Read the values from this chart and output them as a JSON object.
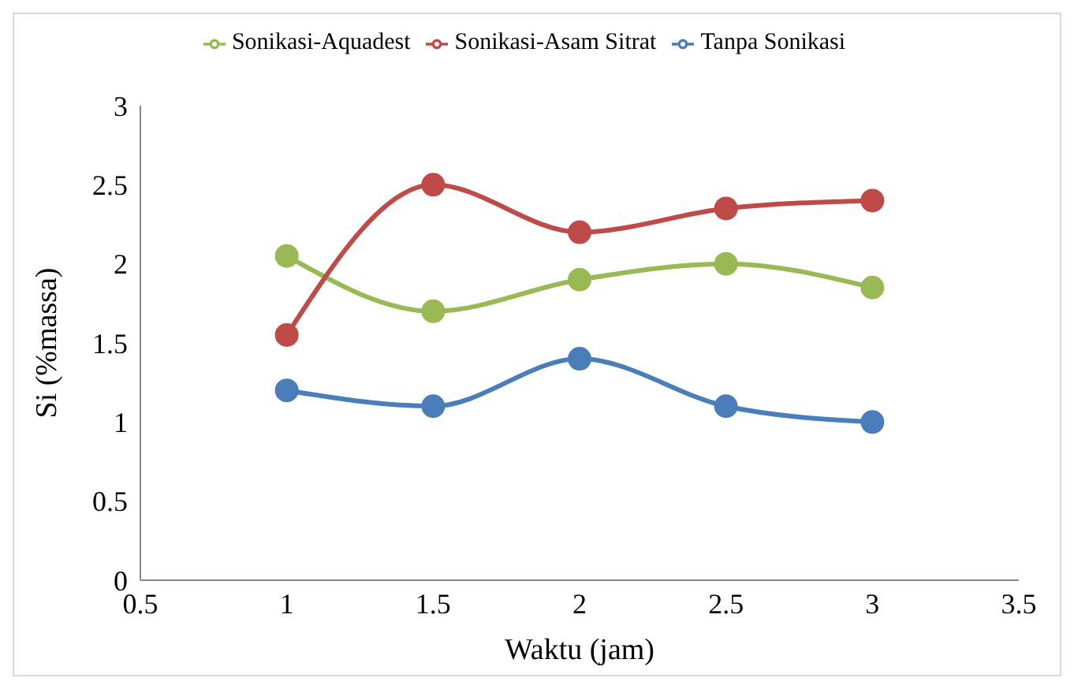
{
  "chart_data": {
    "type": "line",
    "xlabel": "Waktu (jam)",
    "ylabel": "Si (%massa)",
    "x": [
      1,
      1.5,
      2,
      2.5,
      3
    ],
    "series": [
      {
        "name": "Tanpa Sonikasi",
        "color": "#4a7ebb",
        "values": [
          1.2,
          1.1,
          1.4,
          1.1,
          1.0
        ]
      },
      {
        "name": "Sonikasi-Aquadest",
        "color": "#98b954",
        "values": [
          2.05,
          1.7,
          1.9,
          2.0,
          1.85
        ]
      },
      {
        "name": "Sonikasi-Asam Sitrat",
        "color": "#be4b48",
        "values": [
          1.55,
          2.5,
          2.2,
          2.35,
          2.4
        ]
      }
    ],
    "xlim": [
      0.5,
      3.5
    ],
    "xticks": [
      0.5,
      1,
      1.5,
      2,
      2.5,
      3,
      3.5
    ],
    "ylim": [
      0,
      3
    ],
    "yticks": [
      0,
      0.5,
      1,
      1.5,
      2,
      2.5,
      3
    ],
    "grid": false,
    "legend": "top",
    "marker": "circle",
    "line_style": "solid"
  }
}
